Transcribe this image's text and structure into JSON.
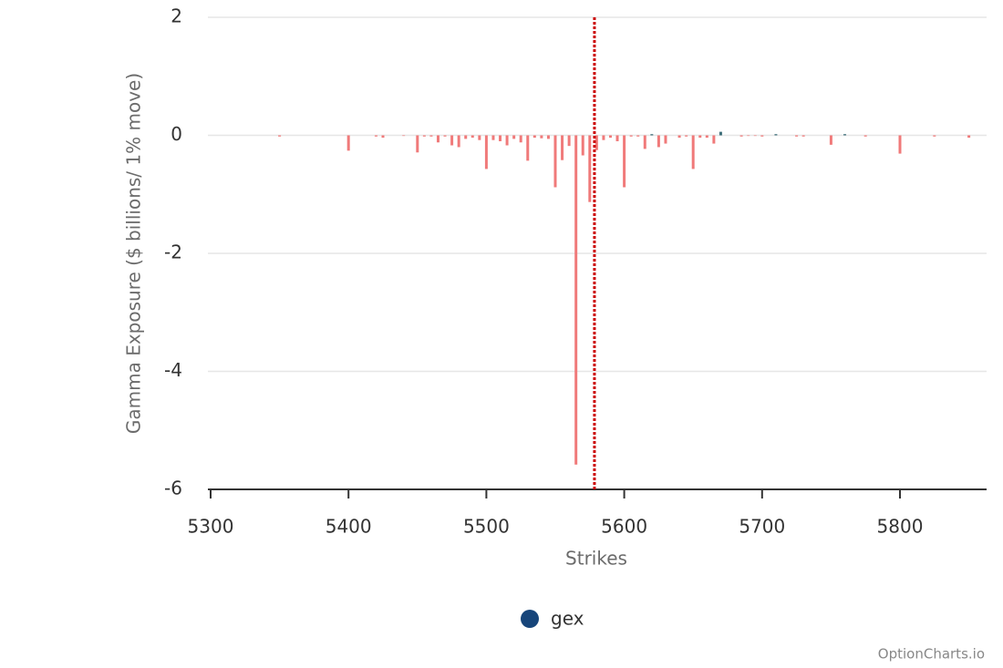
{
  "chart_data": {
    "type": "bar",
    "xlabel": "Strikes",
    "ylabel": "Gamma Exposure ($ billions/ 1% move)",
    "xlim": [
      5300,
      5861
    ],
    "xticks": [
      5300,
      5400,
      5500,
      5600,
      5700,
      5800
    ],
    "ylim": [
      -6,
      2
    ],
    "yticks": [
      -6,
      -4,
      -2,
      0,
      2
    ],
    "grid": true,
    "legend": "bottom",
    "reference_line": {
      "x": 5578.4,
      "color": "#cc0000"
    },
    "series": [
      {
        "name": "gex",
        "color": "#17457a",
        "positive_color": "#3f6f7a",
        "negative_color": "#f07a7a",
        "x": [
          5350,
          5400,
          5420,
          5425,
          5440,
          5450,
          5455,
          5460,
          5465,
          5470,
          5475,
          5480,
          5485,
          5490,
          5495,
          5500,
          5505,
          5510,
          5515,
          5520,
          5525,
          5530,
          5535,
          5540,
          5545,
          5550,
          5555,
          5560,
          5565,
          5570,
          5575,
          5580,
          5585,
          5590,
          5595,
          5600,
          5605,
          5610,
          5615,
          5620,
          5625,
          5630,
          5640,
          5645,
          5650,
          5655,
          5660,
          5665,
          5670,
          5685,
          5690,
          5695,
          5700,
          5710,
          5725,
          5730,
          5750,
          5760,
          5775,
          5800,
          5825,
          5850
        ],
        "values": [
          -0.02,
          -0.26,
          -0.02,
          -0.04,
          -0.01,
          -0.29,
          -0.02,
          -0.02,
          -0.12,
          -0.02,
          -0.17,
          -0.2,
          -0.06,
          -0.04,
          -0.08,
          -0.57,
          -0.08,
          -0.1,
          -0.17,
          -0.06,
          -0.12,
          -0.43,
          -0.04,
          -0.05,
          -0.06,
          -0.88,
          -0.42,
          -0.18,
          -5.58,
          -0.34,
          -1.13,
          -0.25,
          -0.08,
          -0.04,
          -0.1,
          -0.88,
          -0.02,
          -0.02,
          -0.23,
          0.02,
          -0.2,
          -0.14,
          -0.04,
          -0.02,
          -0.57,
          -0.04,
          -0.04,
          -0.14,
          0.06,
          -0.02,
          -0.01,
          -0.01,
          -0.02,
          0.02,
          -0.02,
          -0.02,
          -0.16,
          0.02,
          -0.02,
          -0.31,
          -0.02,
          -0.04
        ]
      }
    ]
  },
  "watermark": "OptionCharts.io"
}
